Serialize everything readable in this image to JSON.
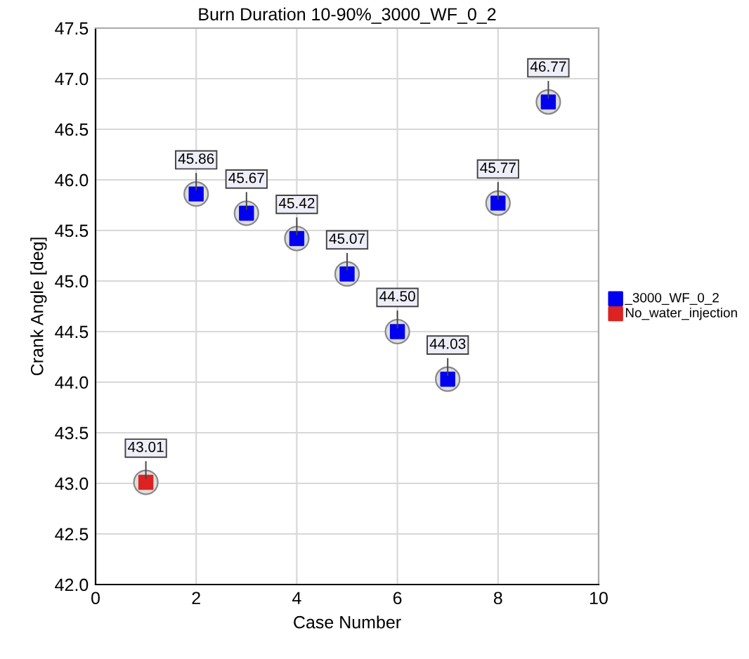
{
  "chart_data": {
    "type": "scatter",
    "title": "Burn Duration 10-90%_3000_WF_0_2",
    "xlabel": "Case Number",
    "ylabel": "Crank Angle [deg]",
    "series": [
      {
        "name": "_3000_WF_0_2",
        "color": "#0000ee",
        "x": [
          2,
          3,
          4,
          5,
          6,
          7,
          8,
          9
        ],
        "values": [
          45.86,
          45.67,
          45.42,
          45.07,
          44.5,
          44.03,
          45.77,
          46.77
        ],
        "value_labels": [
          "45.86",
          "45.67",
          "45.42",
          "45.07",
          "44.50",
          "44.03",
          "45.77",
          "46.77"
        ]
      },
      {
        "name": "No_water_injection",
        "color": "#dd2222",
        "x": [
          1
        ],
        "values": [
          43.01
        ],
        "value_labels": [
          "43.01"
        ]
      }
    ],
    "xlim": [
      0,
      10
    ],
    "xticks": [
      0,
      2,
      4,
      6,
      8,
      10
    ],
    "ylim": [
      42.0,
      47.5
    ],
    "yticks": [
      {
        "value": 42.0,
        "label": "42.0"
      },
      {
        "value": 42.5,
        "label": "42.5"
      },
      {
        "value": 43.0,
        "label": "43.0"
      },
      {
        "value": 43.5,
        "label": "43.5"
      },
      {
        "value": 44.0,
        "label": "44.0"
      },
      {
        "value": 44.5,
        "label": "44.5"
      },
      {
        "value": 45.0,
        "label": "45.0"
      },
      {
        "value": 45.5,
        "label": "45.5"
      },
      {
        "value": 46.0,
        "label": "46.0"
      },
      {
        "value": 46.5,
        "label": "46.5"
      },
      {
        "value": 47.0,
        "label": "47.0"
      },
      {
        "value": 47.5,
        "label": "47.5"
      }
    ],
    "grid": true,
    "legend": "right",
    "marker": "square"
  }
}
